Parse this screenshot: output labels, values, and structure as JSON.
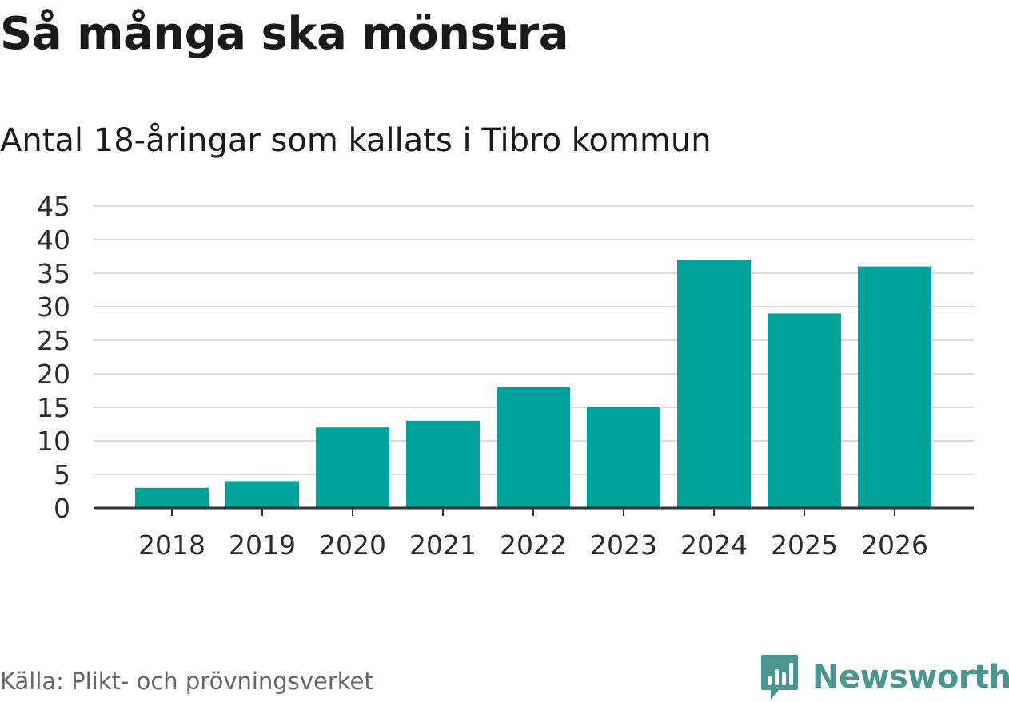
{
  "title": "Så många ska mönstra",
  "subtitle": "Antal 18-åringar som kallats i Tibro kommun",
  "source": "Källa: Plikt- och prövningsverket",
  "brand": {
    "name": "Newsworthy",
    "icon": "newsworthy-logo-icon",
    "color": "#48968f"
  },
  "colors": {
    "bar": "#00a39a",
    "grid": "#dcdcdc",
    "axis": "#333333"
  },
  "chart_data": {
    "type": "bar",
    "categories": [
      "2018",
      "2019",
      "2020",
      "2021",
      "2022",
      "2023",
      "2024",
      "2025",
      "2026"
    ],
    "values": [
      3,
      4,
      12,
      13,
      18,
      15,
      37,
      29,
      36
    ],
    "ylim": [
      0,
      45
    ],
    "yticks": [
      0,
      5,
      10,
      15,
      20,
      25,
      30,
      35,
      40,
      45
    ],
    "grid": true
  }
}
